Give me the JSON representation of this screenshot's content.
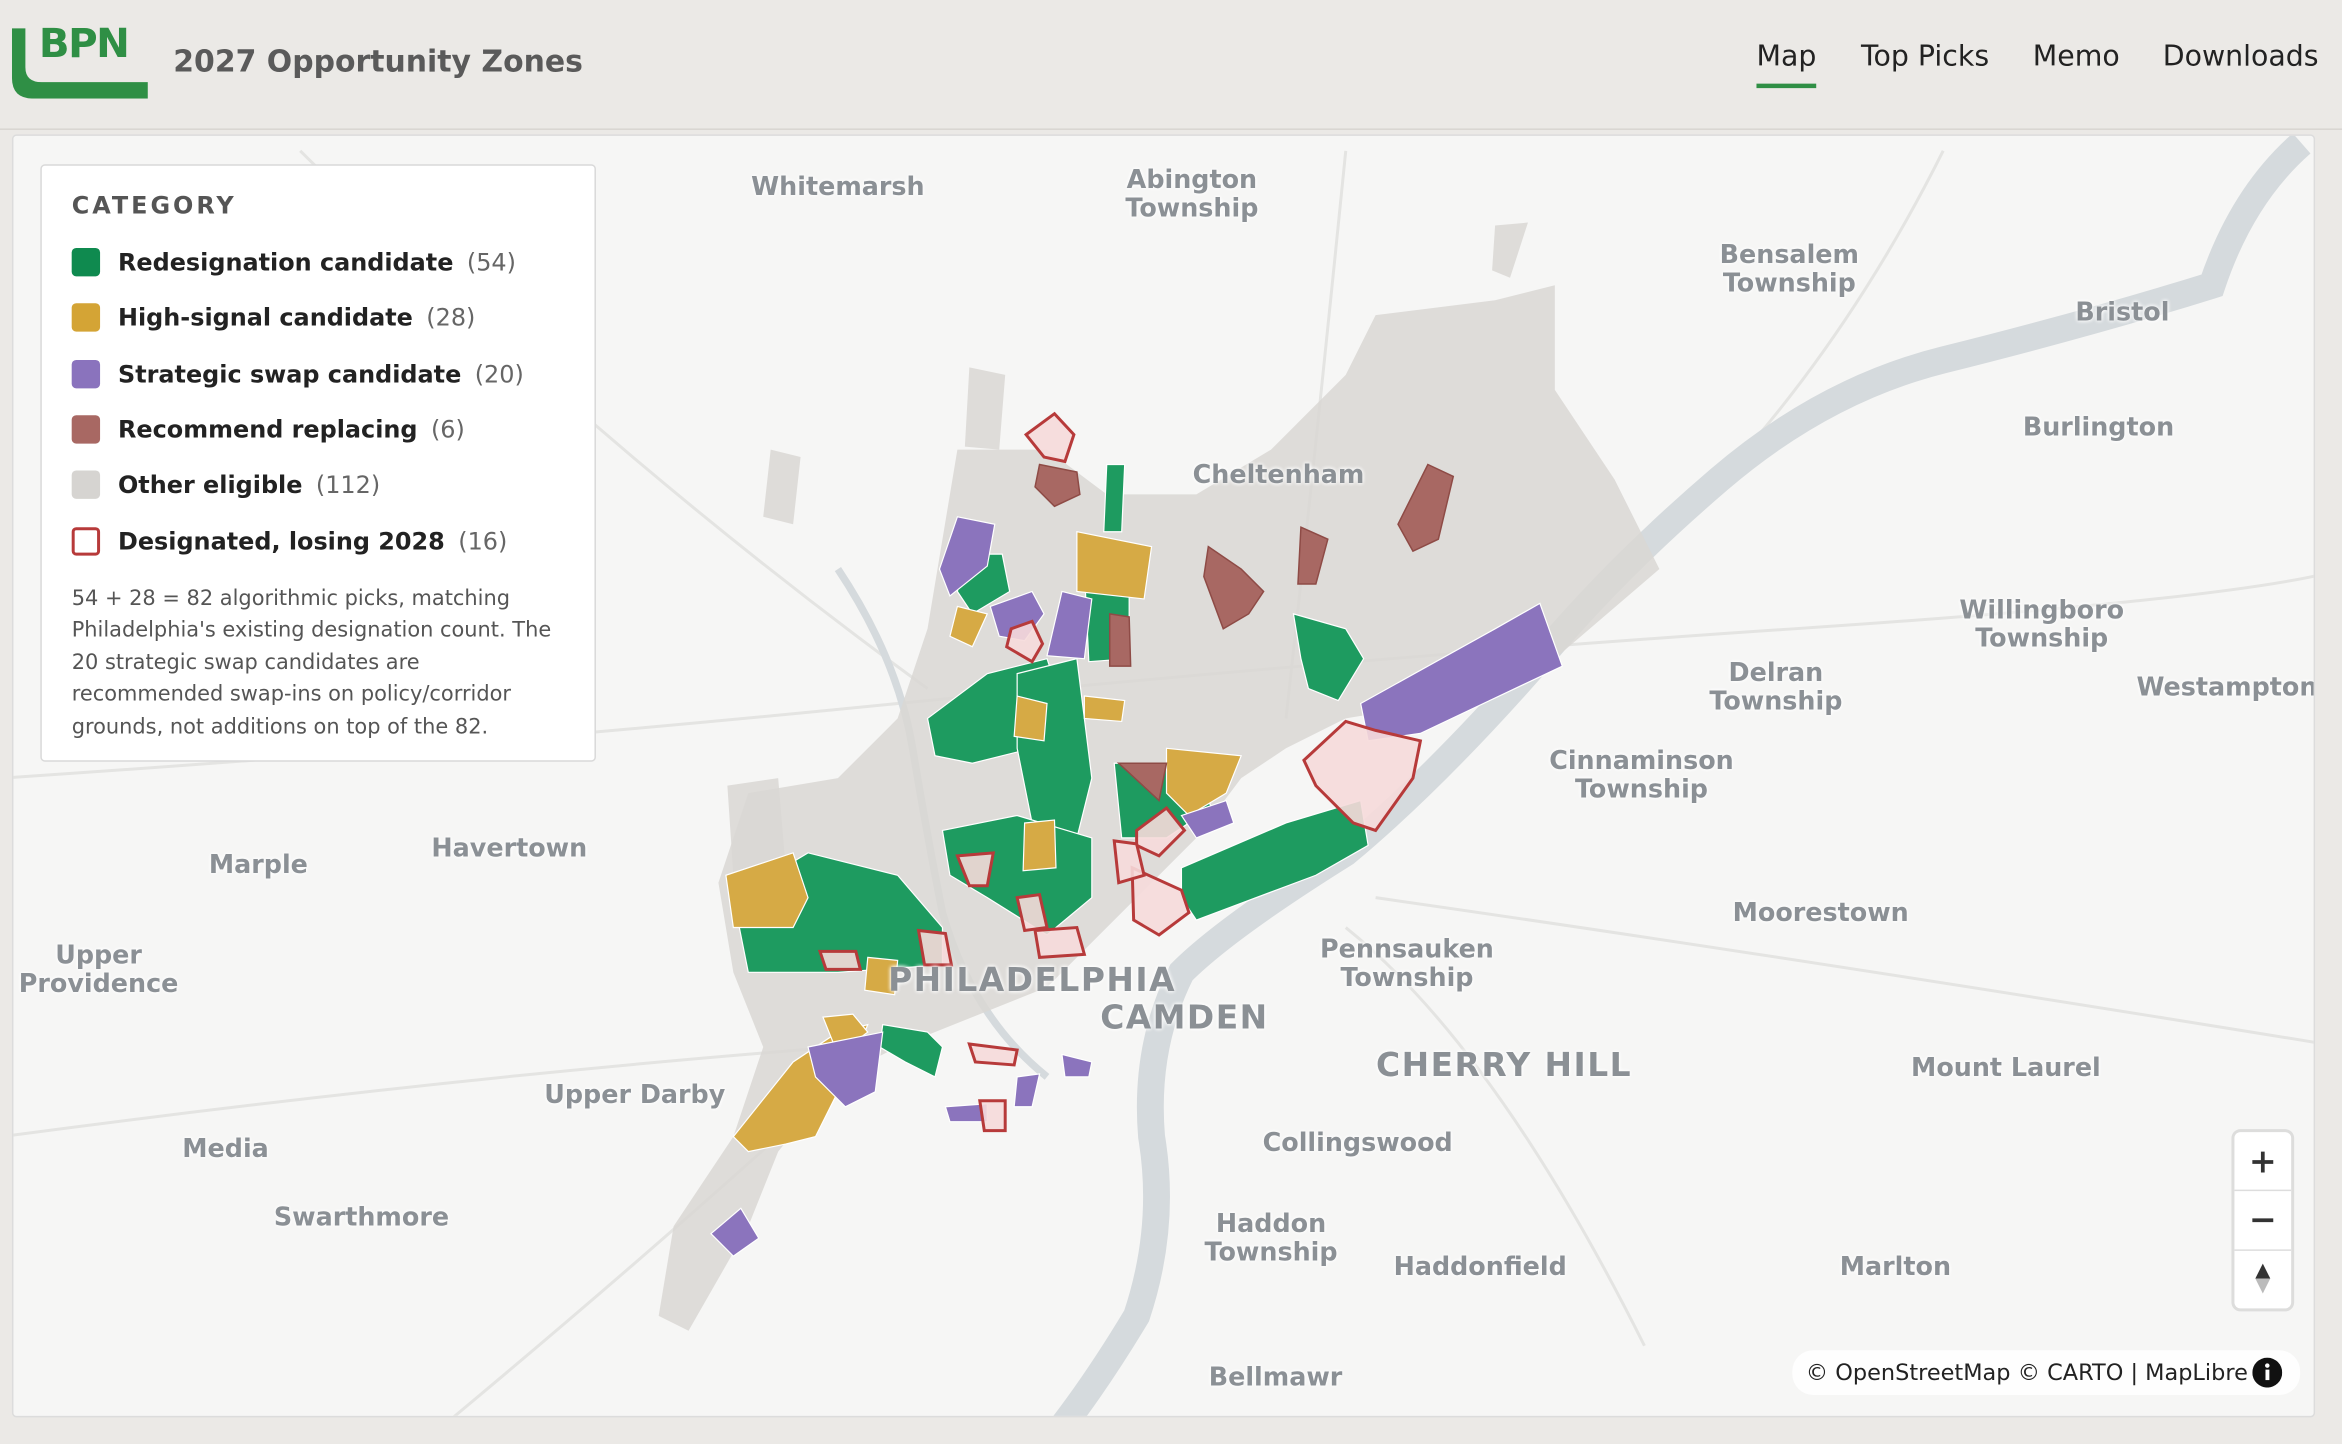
{
  "header": {
    "logo": "BPN",
    "title": "2027 Opportunity Zones",
    "nav": [
      "Map",
      "Top Picks",
      "Memo",
      "Downloads"
    ]
  },
  "legend": {
    "title": "CATEGORY",
    "items": [
      {
        "label": "Redesignation candidate",
        "count": "(54)",
        "color": "#0f8a4f",
        "style": "fill"
      },
      {
        "label": "High-signal candidate",
        "count": "(28)",
        "color": "#d4a435",
        "style": "fill"
      },
      {
        "label": "Strategic swap candidate",
        "count": "(20)",
        "color": "#8a73bd",
        "style": "fill"
      },
      {
        "label": "Recommend replacing",
        "count": "(6)",
        "color": "#a86863",
        "style": "fill"
      },
      {
        "label": "Other eligible",
        "count": "(112)",
        "color": "#d6d4d1",
        "style": "fill"
      },
      {
        "label": "Designated, losing 2028",
        "count": "(16)",
        "color": "#b73a3a",
        "style": "outline"
      }
    ],
    "note": "54 + 28 = 82 algorithmic picks, matching Philadelphia's existing designation count. The 20 strategic swap candidates are recommended swap-ins on policy/corridor grounds, not additions on top of the 82."
  },
  "places": [
    "Whitemarsh",
    "Abington Township",
    "Bensalem Township",
    "Bristol",
    "Burlington",
    "Cheltenham",
    "Willingboro Township",
    "Delran Township",
    "Westampton",
    "Cinnaminson Township",
    "Marple",
    "Havertown",
    "Upper Providence",
    "Moorestown",
    "Pennsauken Township",
    "PHILADELPHIA",
    "CAMDEN",
    "CHERRY HILL",
    "Mount Laurel",
    "Upper Darby",
    "Media",
    "Collingswood",
    "Swarthmore",
    "Haddon Township",
    "Haddonfield",
    "Marlton",
    "Bellmawr"
  ],
  "attribution": "© OpenStreetMap © CARTO | MapLibre"
}
